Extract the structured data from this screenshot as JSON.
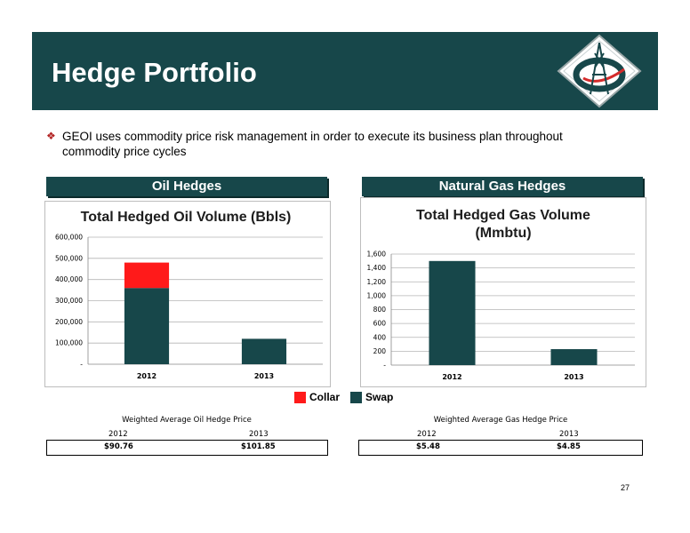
{
  "header": {
    "title": "Hedge Portfolio"
  },
  "bullet": {
    "icon": "diamond-bullet-icon",
    "text": "GEOI uses commodity price risk management in order to execute its business plan throughout commodity price cycles"
  },
  "colors": {
    "header": "#17474a",
    "collar": "#ff1a1a",
    "swap": "#17474a"
  },
  "panels": {
    "oil": {
      "heading": "Oil Hedges"
    },
    "gas": {
      "heading": "Natural Gas Hedges"
    }
  },
  "chart_data": [
    {
      "type": "bar",
      "stacked": true,
      "title": "Total Hedged Oil Volume (Bbls)",
      "categories": [
        "2012",
        "2013"
      ],
      "series": [
        {
          "name": "Swap",
          "values": [
            360000,
            120000
          ]
        },
        {
          "name": "Collar",
          "values": [
            120000,
            0
          ]
        }
      ],
      "ylim": [
        0,
        600000
      ],
      "yticks": [
        0,
        100000,
        200000,
        300000,
        400000,
        500000,
        600000
      ],
      "ytick_labels": [
        "-",
        "100,000",
        "200,000",
        "300,000",
        "400,000",
        "500,000",
        "600,000"
      ],
      "grid": true
    },
    {
      "type": "bar",
      "title": "Total Hedged Gas Volume (Mmbtu)",
      "categories": [
        "2012",
        "2013"
      ],
      "series": [
        {
          "name": "Swap",
          "values": [
            1500,
            230
          ]
        }
      ],
      "ylim": [
        0,
        1600
      ],
      "yticks": [
        0,
        200,
        400,
        600,
        800,
        1000,
        1200,
        1400,
        1600
      ],
      "ytick_labels": [
        "-",
        "200",
        "400",
        "600",
        "800",
        "1,000",
        "1,200",
        "1,400",
        "1,600"
      ],
      "grid": true
    }
  ],
  "legend": [
    {
      "label": "Collar",
      "color": "#ff1a1a"
    },
    {
      "label": "Swap",
      "color": "#17474a"
    }
  ],
  "oil_price": {
    "caption": "Weighted Average Oil Hedge Price",
    "years": [
      "2012",
      "2013"
    ],
    "values": [
      "$90.76",
      "$101.85"
    ]
  },
  "gas_price": {
    "caption": "Weighted Average Gas Hedge Price",
    "years": [
      "2012",
      "2013"
    ],
    "values": [
      "$5.48",
      "$4.85"
    ]
  },
  "page_number": "27"
}
